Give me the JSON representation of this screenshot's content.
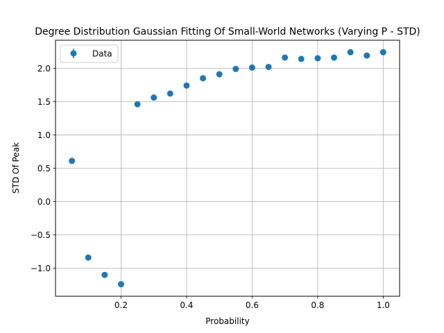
{
  "chart_data": {
    "type": "scatter",
    "title": "Degree Distribution Gaussian Fitting Of Small-World Networks (Varying P - STD)",
    "xlabel": "Probability",
    "ylabel": "STD Of Peak",
    "xlim": [
      0.0,
      1.05
    ],
    "ylim": [
      -1.42,
      2.42
    ],
    "xticks": [
      0.2,
      0.4,
      0.6,
      0.8,
      1.0
    ],
    "xtick_labels": [
      "0.2",
      "0.4",
      "0.6",
      "0.8",
      "1.0"
    ],
    "yticks": [
      -1.0,
      -0.5,
      0.0,
      0.5,
      1.0,
      1.5,
      2.0
    ],
    "ytick_labels": [
      "−1.0",
      "−0.5",
      "0.0",
      "0.5",
      "1.0",
      "1.5",
      "2.0"
    ],
    "grid": true,
    "legend": "top-left",
    "color": "#1f77b4",
    "series": [
      {
        "name": "Data",
        "marker": "circle",
        "x": [
          0.05,
          0.1,
          0.15,
          0.2,
          0.25,
          0.3,
          0.35,
          0.4,
          0.45,
          0.5,
          0.55,
          0.6,
          0.65,
          0.7,
          0.75,
          0.8,
          0.85,
          0.9,
          0.95,
          1.0
        ],
        "y": [
          0.61,
          -0.84,
          -1.1,
          -1.24,
          1.46,
          1.56,
          1.62,
          1.74,
          1.85,
          1.91,
          1.99,
          2.01,
          2.02,
          2.16,
          2.14,
          2.15,
          2.16,
          2.24,
          2.19,
          2.24
        ]
      }
    ]
  }
}
